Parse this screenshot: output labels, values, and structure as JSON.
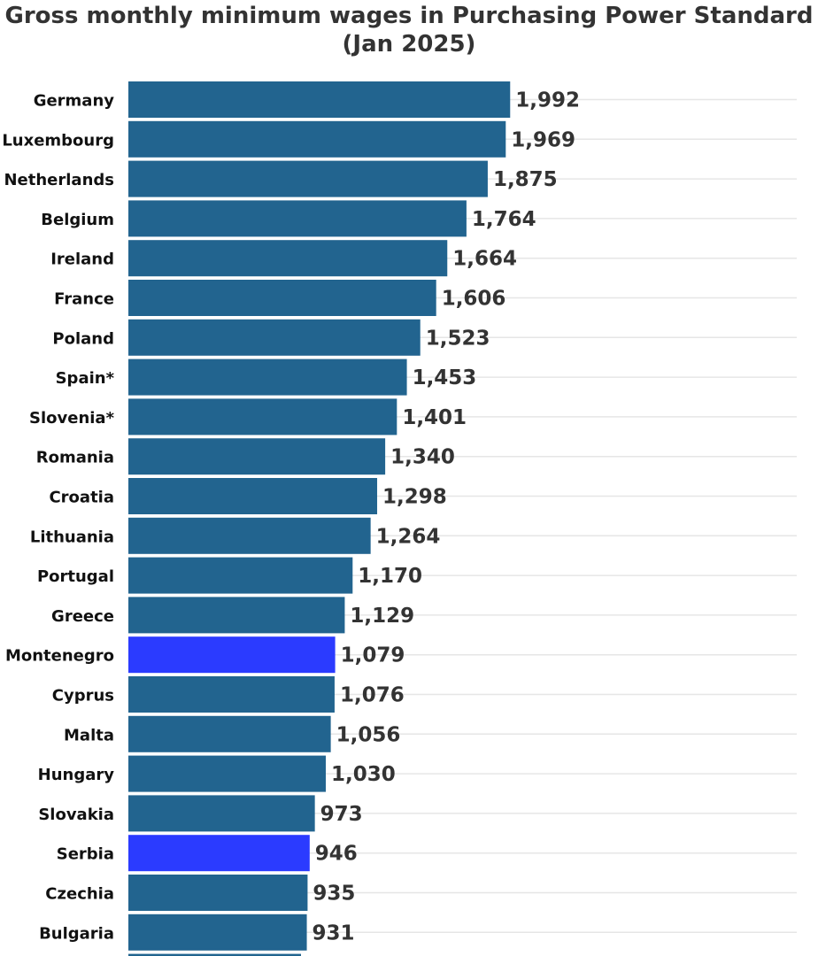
{
  "chart_data": {
    "type": "bar",
    "orientation": "horizontal",
    "title": "Gross monthly minimum wages in Purchasing Power Standard (Jan 2025)",
    "title_lines": [
      "Gross monthly minimum wages in Purchasing Power Standard",
      "(Jan 2025)"
    ],
    "xlabel": "",
    "ylabel": "",
    "xlim": [
      0,
      3280
    ],
    "grid": true,
    "legend": "none",
    "colors": {
      "default": "#22648f",
      "highlight": "#2b3bff"
    },
    "categories": [
      "Germany",
      "Luxembourg",
      "Netherlands",
      "Belgium",
      "Ireland",
      "France",
      "Poland",
      "Spain*",
      "Slovenia*",
      "Romania",
      "Croatia",
      "Lithuania",
      "Portugal",
      "Greece",
      "Montenegro",
      "Cyprus",
      "Malta",
      "Hungary",
      "Slovakia",
      "Serbia",
      "Czechia",
      "Bulgaria"
    ],
    "values": [
      1992,
      1969,
      1875,
      1764,
      1664,
      1606,
      1523,
      1453,
      1401,
      1340,
      1298,
      1264,
      1170,
      1129,
      1079,
      1076,
      1056,
      1030,
      973,
      946,
      935,
      931
    ],
    "value_labels": [
      "1,992",
      "1,969",
      "1,875",
      "1,764",
      "1,664",
      "1,606",
      "1,523",
      "1,453",
      "1,401",
      "1,340",
      "1,298",
      "1,264",
      "1,170",
      "1,129",
      "1,079",
      "1,076",
      "1,056",
      "1,030",
      "973",
      "946",
      "935",
      "931"
    ],
    "highlighted": [
      "Montenegro",
      "Serbia"
    ]
  }
}
